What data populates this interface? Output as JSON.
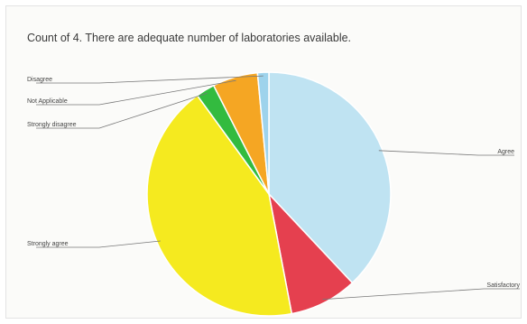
{
  "chart_data": {
    "type": "pie",
    "title": "Count of 4. There are adequate number of laboratories available.",
    "legend": "none",
    "slices": [
      {
        "label": "Agree",
        "value": 38,
        "color": "#bfe3f2"
      },
      {
        "label": "Satisfactory",
        "value": 9,
        "color": "#e5404f"
      },
      {
        "label": "Strongly agree",
        "value": 43,
        "color": "#f5ea1f"
      },
      {
        "label": "Strongly disagree",
        "value": 2.5,
        "color": "#33bb3f"
      },
      {
        "label": "Not Applicable",
        "value": 6,
        "color": "#f5a623"
      },
      {
        "label": "Disagree",
        "value": 1.5,
        "color": "#9ed3ec"
      }
    ]
  }
}
